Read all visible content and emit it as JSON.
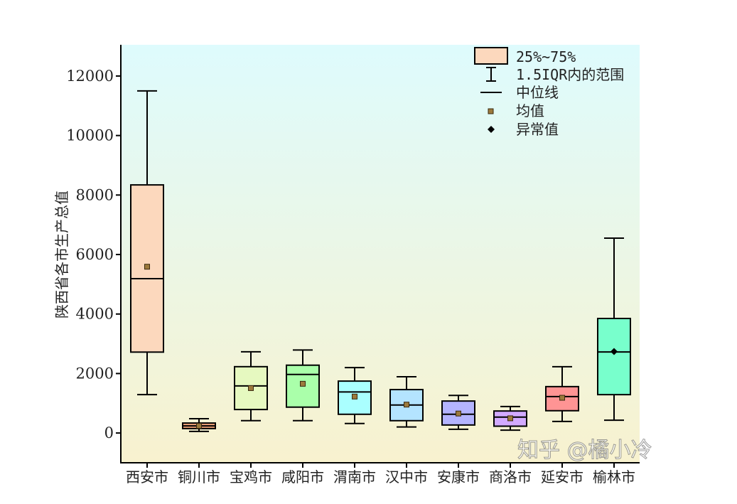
{
  "chart_data": {
    "type": "box",
    "title": "",
    "xlabel": "",
    "ylabel": "陕西省各市生产总值",
    "ylim": [
      -1000,
      13050
    ],
    "yticks": [
      0,
      2000,
      4000,
      6000,
      8000,
      10000,
      12000
    ],
    "grid": false,
    "legend_position": "top-right",
    "categories": [
      "西安市",
      "铜川市",
      "宝鸡市",
      "咸阳市",
      "渭南市",
      "汉中市",
      "安康市",
      "商洛市",
      "延安市",
      "榆林市"
    ],
    "boxes": [
      {
        "whisker_low": 1290,
        "q1": 2720,
        "median": 5190,
        "q3": 8340,
        "whisker_high": 11500,
        "mean": 5590,
        "color": "#fcd8bd",
        "mean_marker": "square"
      },
      {
        "whisker_low": 55,
        "q1": 150,
        "median": 240,
        "q3": 335,
        "whisker_high": 480,
        "mean": 240,
        "color": "#f4a57a",
        "mean_marker": "square"
      },
      {
        "whisker_low": 415,
        "q1": 790,
        "median": 1585,
        "q3": 2230,
        "whisker_high": 2730,
        "mean": 1510,
        "color": "#e6f9c0",
        "mean_marker": "square"
      },
      {
        "whisker_low": 415,
        "q1": 870,
        "median": 1970,
        "q3": 2280,
        "whisker_high": 2790,
        "mean": 1655,
        "color": "#aaffaa",
        "mean_marker": "square"
      },
      {
        "whisker_low": 320,
        "q1": 630,
        "median": 1380,
        "q3": 1745,
        "whisker_high": 2200,
        "mean": 1225,
        "color": "#aaffff",
        "mean_marker": "square"
      },
      {
        "whisker_low": 205,
        "q1": 415,
        "median": 940,
        "q3": 1460,
        "whisker_high": 1890,
        "mean": 955,
        "color": "#b4e4ff",
        "mean_marker": "square"
      },
      {
        "whisker_low": 125,
        "q1": 270,
        "median": 630,
        "q3": 1075,
        "whisker_high": 1265,
        "mean": 655,
        "color": "#b4b4ff",
        "mean_marker": "square"
      },
      {
        "whisker_low": 95,
        "q1": 230,
        "median": 535,
        "q3": 740,
        "whisker_high": 890,
        "mean": 495,
        "color": "#d2aaff",
        "mean_marker": "square"
      },
      {
        "whisker_low": 390,
        "q1": 750,
        "median": 1225,
        "q3": 1560,
        "whisker_high": 2230,
        "mean": 1185,
        "color": "#ff9494",
        "mean_marker": "square"
      },
      {
        "whisker_low": 430,
        "q1": 1290,
        "median": 2725,
        "q3": 3850,
        "whisker_high": 6550,
        "mean": 2740,
        "color": "#78ffcc",
        "mean_marker": "diamond"
      }
    ],
    "legend": [
      "25%~75%",
      "1.5IQR内的范围",
      "中位线",
      "均值",
      "异常值"
    ],
    "background_gradient": [
      "#defbfd",
      "#f8f2cf"
    ],
    "mean_color": "#9c7a3c"
  },
  "watermark": "知乎 @橘小冷"
}
